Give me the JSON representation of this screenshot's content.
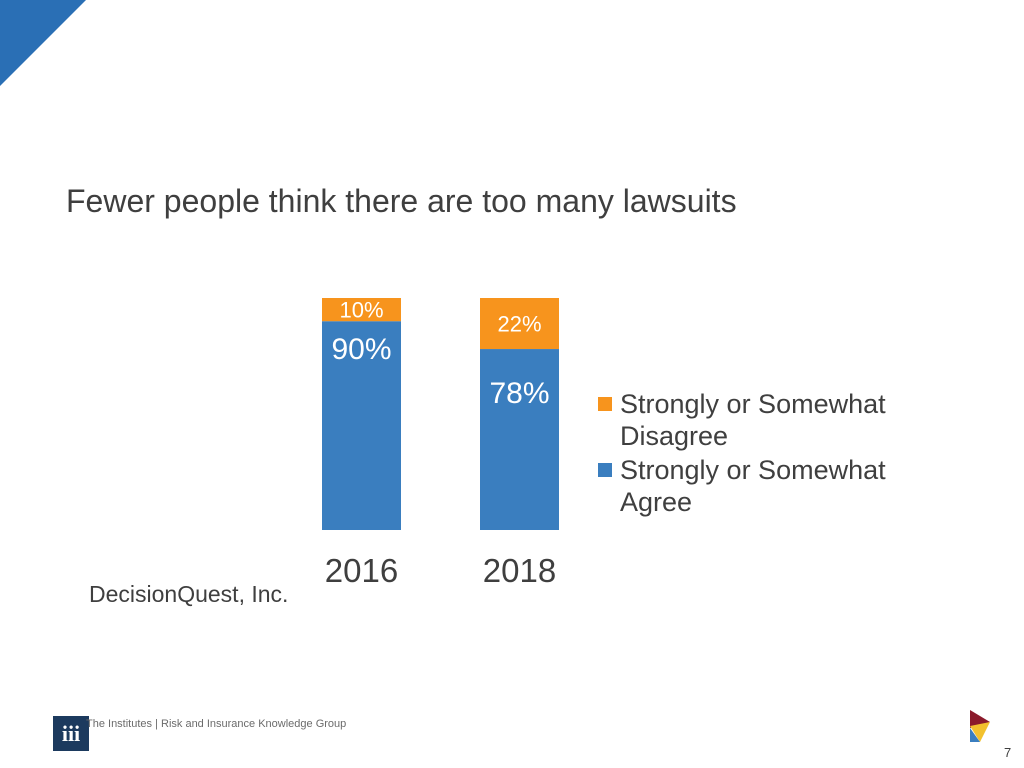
{
  "slide": {
    "title": "Fewer people think there are too many lawsuits",
    "source": "DecisionQuest, Inc.",
    "footer_text": "The Institutes | Risk and Insurance Knowledge Group",
    "logo_text": "iii",
    "page_number": "7"
  },
  "colors": {
    "agree": "#3a7ebf",
    "disagree": "#f7941d",
    "accent_corner": "#2a6fb5"
  },
  "chart_data": {
    "type": "bar",
    "stacked": true,
    "categories": [
      "2016",
      "2018"
    ],
    "series": [
      {
        "name": "Strongly or Somewhat Agree",
        "values": [
          90,
          78
        ],
        "labels": [
          "90%",
          "78%"
        ],
        "color": "#3a7ebf"
      },
      {
        "name": "Strongly or Somewhat Disagree",
        "values": [
          10,
          22
        ],
        "labels": [
          "10%",
          "22%"
        ],
        "color": "#f7941d"
      }
    ],
    "legend": [
      {
        "name": "Strongly or Somewhat Disagree",
        "color": "#f7941d"
      },
      {
        "name": "Strongly or Somewhat Agree",
        "color": "#3a7ebf"
      }
    ],
    "ylim": [
      0,
      100
    ],
    "grid": false,
    "legend_position": "right"
  }
}
